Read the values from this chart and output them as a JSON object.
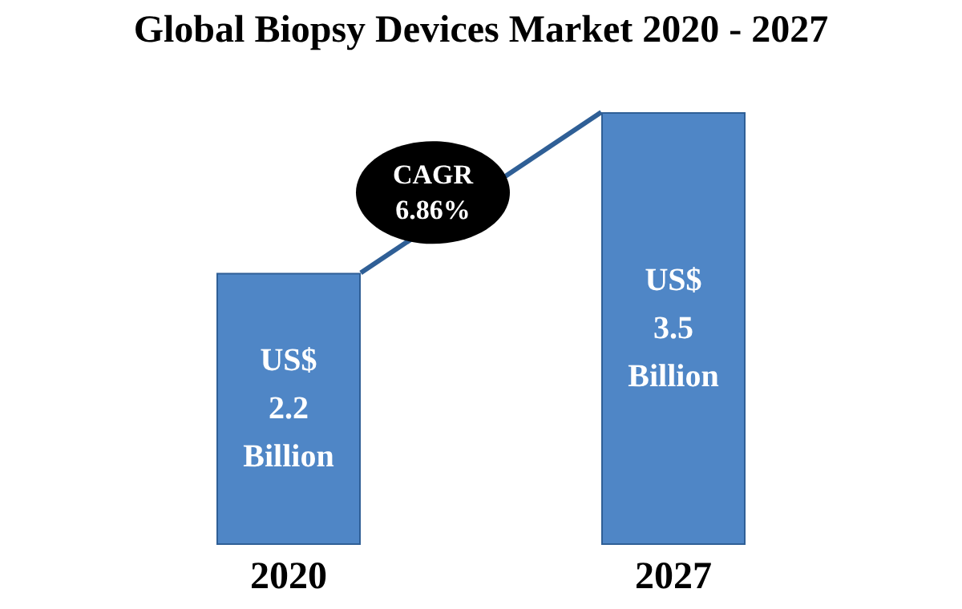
{
  "chart_data": {
    "type": "bar",
    "title": "Global Biopsy Devices Market 2020 - 2027",
    "categories": [
      "2020",
      "2027"
    ],
    "values": [
      2.2,
      3.5
    ],
    "value_labels": [
      "US$\n2.2\nBillion",
      "US$\n3.5\nBillion"
    ],
    "color": "#4f86c6",
    "annotations": [
      "CAGR\n6.86%"
    ]
  }
}
